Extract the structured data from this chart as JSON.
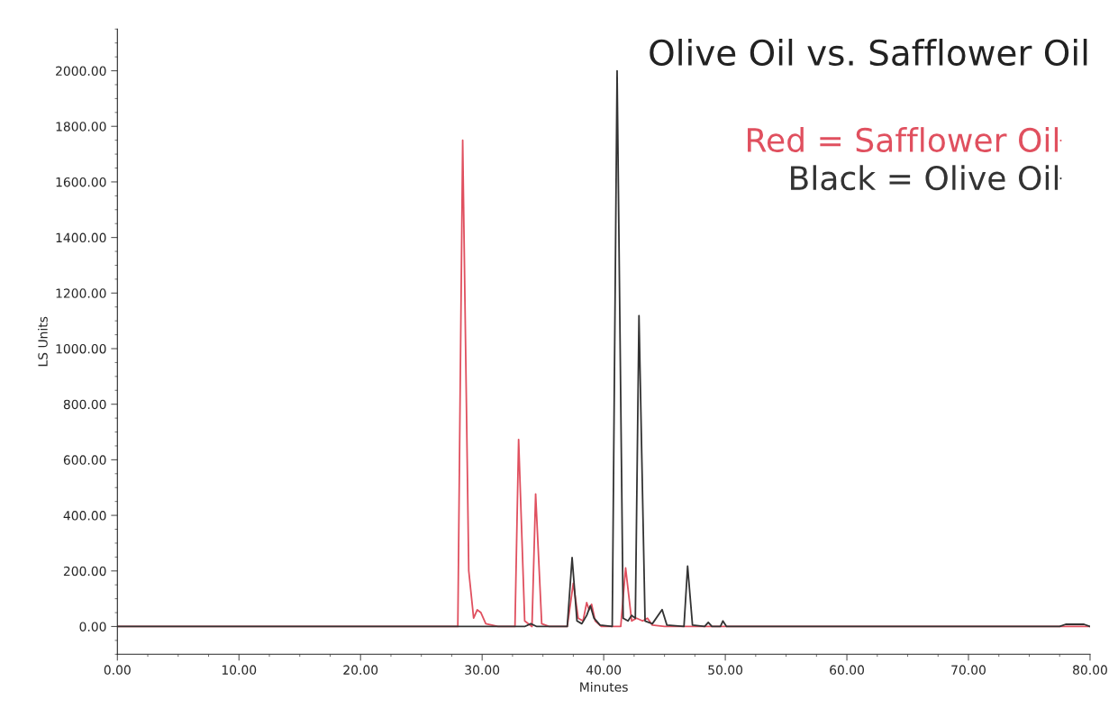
{
  "chart_data": {
    "type": "line",
    "title": "Olive Oil vs. Safflower Oil",
    "xlabel": "Minutes",
    "ylabel": "LS Units",
    "xlim": [
      0,
      80
    ],
    "ylim": [
      -100,
      2150
    ],
    "xticks": [
      {
        "value": 0,
        "label": "0.00"
      },
      {
        "value": 10,
        "label": "10.00"
      },
      {
        "value": 20,
        "label": "20.00"
      },
      {
        "value": 30,
        "label": "30.00"
      },
      {
        "value": 40,
        "label": "40.00"
      },
      {
        "value": 50,
        "label": "50.00"
      },
      {
        "value": 60,
        "label": "60.00"
      },
      {
        "value": 70,
        "label": "70.00"
      },
      {
        "value": 80,
        "label": "80.00"
      }
    ],
    "yticks": [
      {
        "value": 0,
        "label": "0.00"
      },
      {
        "value": 200,
        "label": "200.00"
      },
      {
        "value": 400,
        "label": "400.00"
      },
      {
        "value": 600,
        "label": "600.00"
      },
      {
        "value": 800,
        "label": "800.00"
      },
      {
        "value": 1000,
        "label": "1000.00"
      },
      {
        "value": 1200,
        "label": "1200.00"
      },
      {
        "value": 1400,
        "label": "1400.00"
      },
      {
        "value": 1600,
        "label": "1600.00"
      },
      {
        "value": 1800,
        "label": "1800.00"
      },
      {
        "value": 2000,
        "label": "2000.00"
      }
    ],
    "grid": false,
    "legend": "top right",
    "marker": "none",
    "line_style": "solid",
    "series": [
      {
        "name": "Red = Safflower Oil",
        "color": "#e0505f",
        "x": [
          0,
          17,
          28.0,
          28.4,
          28.9,
          29.3,
          29.6,
          29.9,
          30.3,
          30.8,
          31.3,
          32.7,
          33.0,
          33.5,
          34.1,
          34.4,
          34.9,
          35.5,
          37.0,
          37.5,
          37.9,
          38.3,
          38.6,
          38.8,
          39.0,
          39.3,
          39.8,
          41.4,
          41.8,
          42.3,
          42.7,
          43.2,
          43.6,
          44.0,
          45,
          80
        ],
        "values": [
          0,
          0,
          0,
          1750,
          200,
          30,
          60,
          50,
          10,
          5,
          0,
          0,
          673,
          20,
          0,
          477,
          10,
          0,
          0,
          156,
          30,
          20,
          86,
          60,
          80,
          20,
          0,
          0,
          211,
          20,
          30,
          20,
          30,
          5,
          0,
          0
        ]
      },
      {
        "name": "Black = Olive Oil",
        "color": "#333333",
        "x": [
          0,
          33.5,
          34,
          34.5,
          37.0,
          37.4,
          37.8,
          38.2,
          38.6,
          38.9,
          39.2,
          39.7,
          40.7,
          41.1,
          41.6,
          42.0,
          42.3,
          42.6,
          42.9,
          43.4,
          44.0,
          44.8,
          45.2,
          46.6,
          46.9,
          47.3,
          48.3,
          48.6,
          48.9,
          49.6,
          49.8,
          50.1,
          77.5,
          78,
          79.5,
          80
        ],
        "values": [
          0,
          0,
          10,
          0,
          0,
          248,
          20,
          10,
          40,
          75,
          30,
          5,
          0,
          2000,
          30,
          20,
          40,
          30,
          1119,
          20,
          10,
          61,
          5,
          0,
          217,
          5,
          0,
          15,
          0,
          0,
          20,
          0,
          0,
          8,
          8,
          0
        ]
      }
    ]
  }
}
